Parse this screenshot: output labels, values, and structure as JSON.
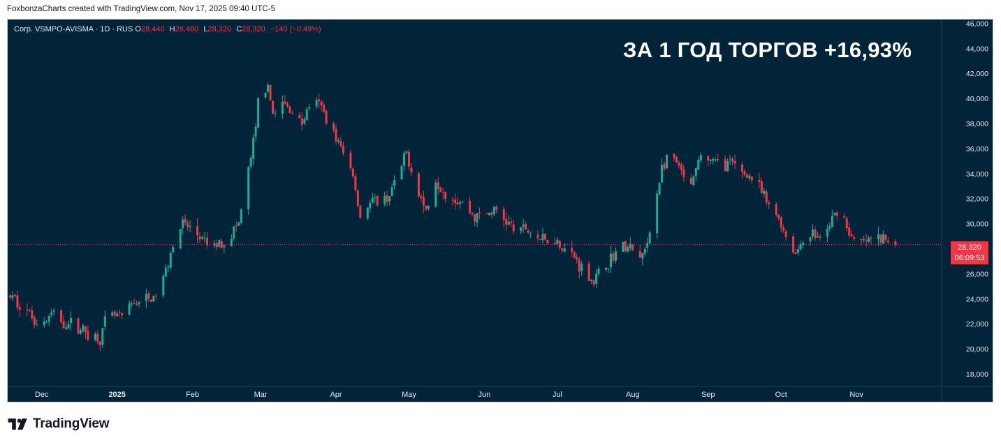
{
  "header": {
    "credit": "FoxbonzaCharts created with TradingView.com, Nov 17, 2025 09:40 UTC-5"
  },
  "legend": {
    "symbol": "Corp. VSMPO-AVISMA · 1D · RUS",
    "o_label": "O",
    "o_value": "28,440",
    "h_label": "H",
    "h_value": "28,480",
    "l_label": "L",
    "l_value": "28,320",
    "c_label": "C",
    "c_value": "28,320",
    "change": "−140 (−0.49%)"
  },
  "headline": "ЗА 1 ГОД ТОРГОВ +16,93%",
  "price_badge": {
    "price": "28,320",
    "countdown": "06:09:53"
  },
  "footer": {
    "logo_text": "TradingView"
  },
  "colors": {
    "up": "#22ab94",
    "down": "#f23645",
    "background": "#022439",
    "text": "#e6e9ef"
  },
  "chart_data": {
    "type": "candlestick",
    "y_ticks": [
      "18,000",
      "20,000",
      "22,000",
      "24,000",
      "26,000",
      "28,000",
      "30,000",
      "32,000",
      "34,000",
      "36,000",
      "38,000",
      "40,000",
      "42,000",
      "44,000",
      "46,000"
    ],
    "ylim": [
      17000,
      46300
    ],
    "x_ticks": [
      {
        "label": "Dec",
        "x": "2024-12-01"
      },
      {
        "label": "2025",
        "x": "2025-01-01"
      },
      {
        "label": "Feb",
        "x": "2025-02-01"
      },
      {
        "label": "Mar",
        "x": "2025-03-01"
      },
      {
        "label": "Apr",
        "x": "2025-04-01"
      },
      {
        "label": "May",
        "x": "2025-05-01"
      },
      {
        "label": "Jun",
        "x": "2025-06-01"
      },
      {
        "label": "Jul",
        "x": "2025-07-01"
      },
      {
        "label": "Aug",
        "x": "2025-08-01"
      },
      {
        "label": "Sep",
        "x": "2025-09-01"
      },
      {
        "label": "Oct",
        "x": "2025-10-01"
      },
      {
        "label": "Nov",
        "x": "2025-11-01"
      }
    ],
    "x_range": [
      "2024-11-17",
      "2025-12-06"
    ],
    "last_price": 28320,
    "ohlc_path": [
      [
        "2024-11-18",
        24200
      ],
      [
        "2024-11-22",
        23600
      ],
      [
        "2024-11-27",
        22600
      ],
      [
        "2024-12-01",
        21800
      ],
      [
        "2024-12-05",
        22800
      ],
      [
        "2024-12-10",
        22100
      ],
      [
        "2024-12-15",
        21900
      ],
      [
        "2024-12-20",
        21200
      ],
      [
        "2024-12-25",
        20800
      ],
      [
        "2024-12-28",
        22700
      ],
      [
        "2025-01-03",
        22500
      ],
      [
        "2025-01-08",
        23700
      ],
      [
        "2025-01-12",
        23900
      ],
      [
        "2025-01-16",
        24000
      ],
      [
        "2025-01-20",
        25600
      ],
      [
        "2025-01-24",
        28500
      ],
      [
        "2025-01-28",
        30000
      ],
      [
        "2025-02-02",
        29300
      ],
      [
        "2025-02-06",
        28400
      ],
      [
        "2025-02-10",
        28200
      ],
      [
        "2025-02-15",
        28700
      ],
      [
        "2025-02-20",
        30000
      ],
      [
        "2025-02-24",
        34200
      ],
      [
        "2025-02-27",
        37500
      ],
      [
        "2025-03-01",
        42000
      ],
      [
        "2025-03-04",
        40500
      ],
      [
        "2025-03-07",
        38500
      ],
      [
        "2025-03-10",
        39600
      ],
      [
        "2025-03-14",
        39000
      ],
      [
        "2025-03-18",
        38000
      ],
      [
        "2025-03-22",
        40000
      ],
      [
        "2025-03-26",
        39200
      ],
      [
        "2025-03-30",
        37800
      ],
      [
        "2025-04-03",
        36000
      ],
      [
        "2025-04-08",
        34000
      ],
      [
        "2025-04-11",
        30500
      ],
      [
        "2025-04-14",
        31500
      ],
      [
        "2025-04-18",
        31800
      ],
      [
        "2025-04-22",
        32000
      ],
      [
        "2025-04-26",
        33500
      ],
      [
        "2025-04-30",
        35600
      ],
      [
        "2025-05-04",
        33000
      ],
      [
        "2025-05-08",
        31000
      ],
      [
        "2025-05-12",
        33500
      ],
      [
        "2025-05-16",
        32500
      ],
      [
        "2025-05-20",
        32000
      ],
      [
        "2025-05-24",
        31500
      ],
      [
        "2025-05-28",
        30500
      ],
      [
        "2025-06-02",
        30800
      ],
      [
        "2025-06-06",
        31000
      ],
      [
        "2025-06-10",
        30200
      ],
      [
        "2025-06-14",
        29400
      ],
      [
        "2025-06-18",
        29600
      ],
      [
        "2025-06-22",
        29000
      ],
      [
        "2025-06-26",
        28600
      ],
      [
        "2025-06-30",
        28800
      ],
      [
        "2025-07-04",
        28000
      ],
      [
        "2025-07-08",
        27300
      ],
      [
        "2025-07-12",
        26200
      ],
      [
        "2025-07-16",
        25400
      ],
      [
        "2025-07-19",
        26200
      ],
      [
        "2025-07-23",
        27200
      ],
      [
        "2025-07-27",
        28200
      ],
      [
        "2025-07-31",
        28000
      ],
      [
        "2025-08-04",
        27200
      ],
      [
        "2025-08-07",
        28200
      ],
      [
        "2025-08-10",
        31500
      ],
      [
        "2025-08-13",
        34500
      ],
      [
        "2025-08-17",
        35500
      ],
      [
        "2025-08-21",
        34000
      ],
      [
        "2025-08-25",
        32800
      ],
      [
        "2025-08-29",
        35500
      ],
      [
        "2025-09-02",
        35000
      ],
      [
        "2025-09-06",
        34800
      ],
      [
        "2025-09-10",
        34800
      ],
      [
        "2025-09-14",
        34200
      ],
      [
        "2025-09-18",
        33800
      ],
      [
        "2025-09-22",
        32800
      ],
      [
        "2025-09-26",
        31300
      ],
      [
        "2025-09-30",
        30500
      ],
      [
        "2025-10-04",
        28500
      ],
      [
        "2025-10-07",
        27600
      ],
      [
        "2025-10-10",
        28800
      ],
      [
        "2025-10-14",
        29200
      ],
      [
        "2025-10-18",
        28600
      ],
      [
        "2025-10-22",
        30300
      ],
      [
        "2025-10-25",
        31500
      ],
      [
        "2025-10-28",
        29800
      ],
      [
        "2025-10-31",
        28400
      ],
      [
        "2025-11-04",
        28500
      ],
      [
        "2025-11-08",
        28800
      ],
      [
        "2025-11-12",
        28700
      ],
      [
        "2025-11-17",
        28320
      ]
    ]
  }
}
